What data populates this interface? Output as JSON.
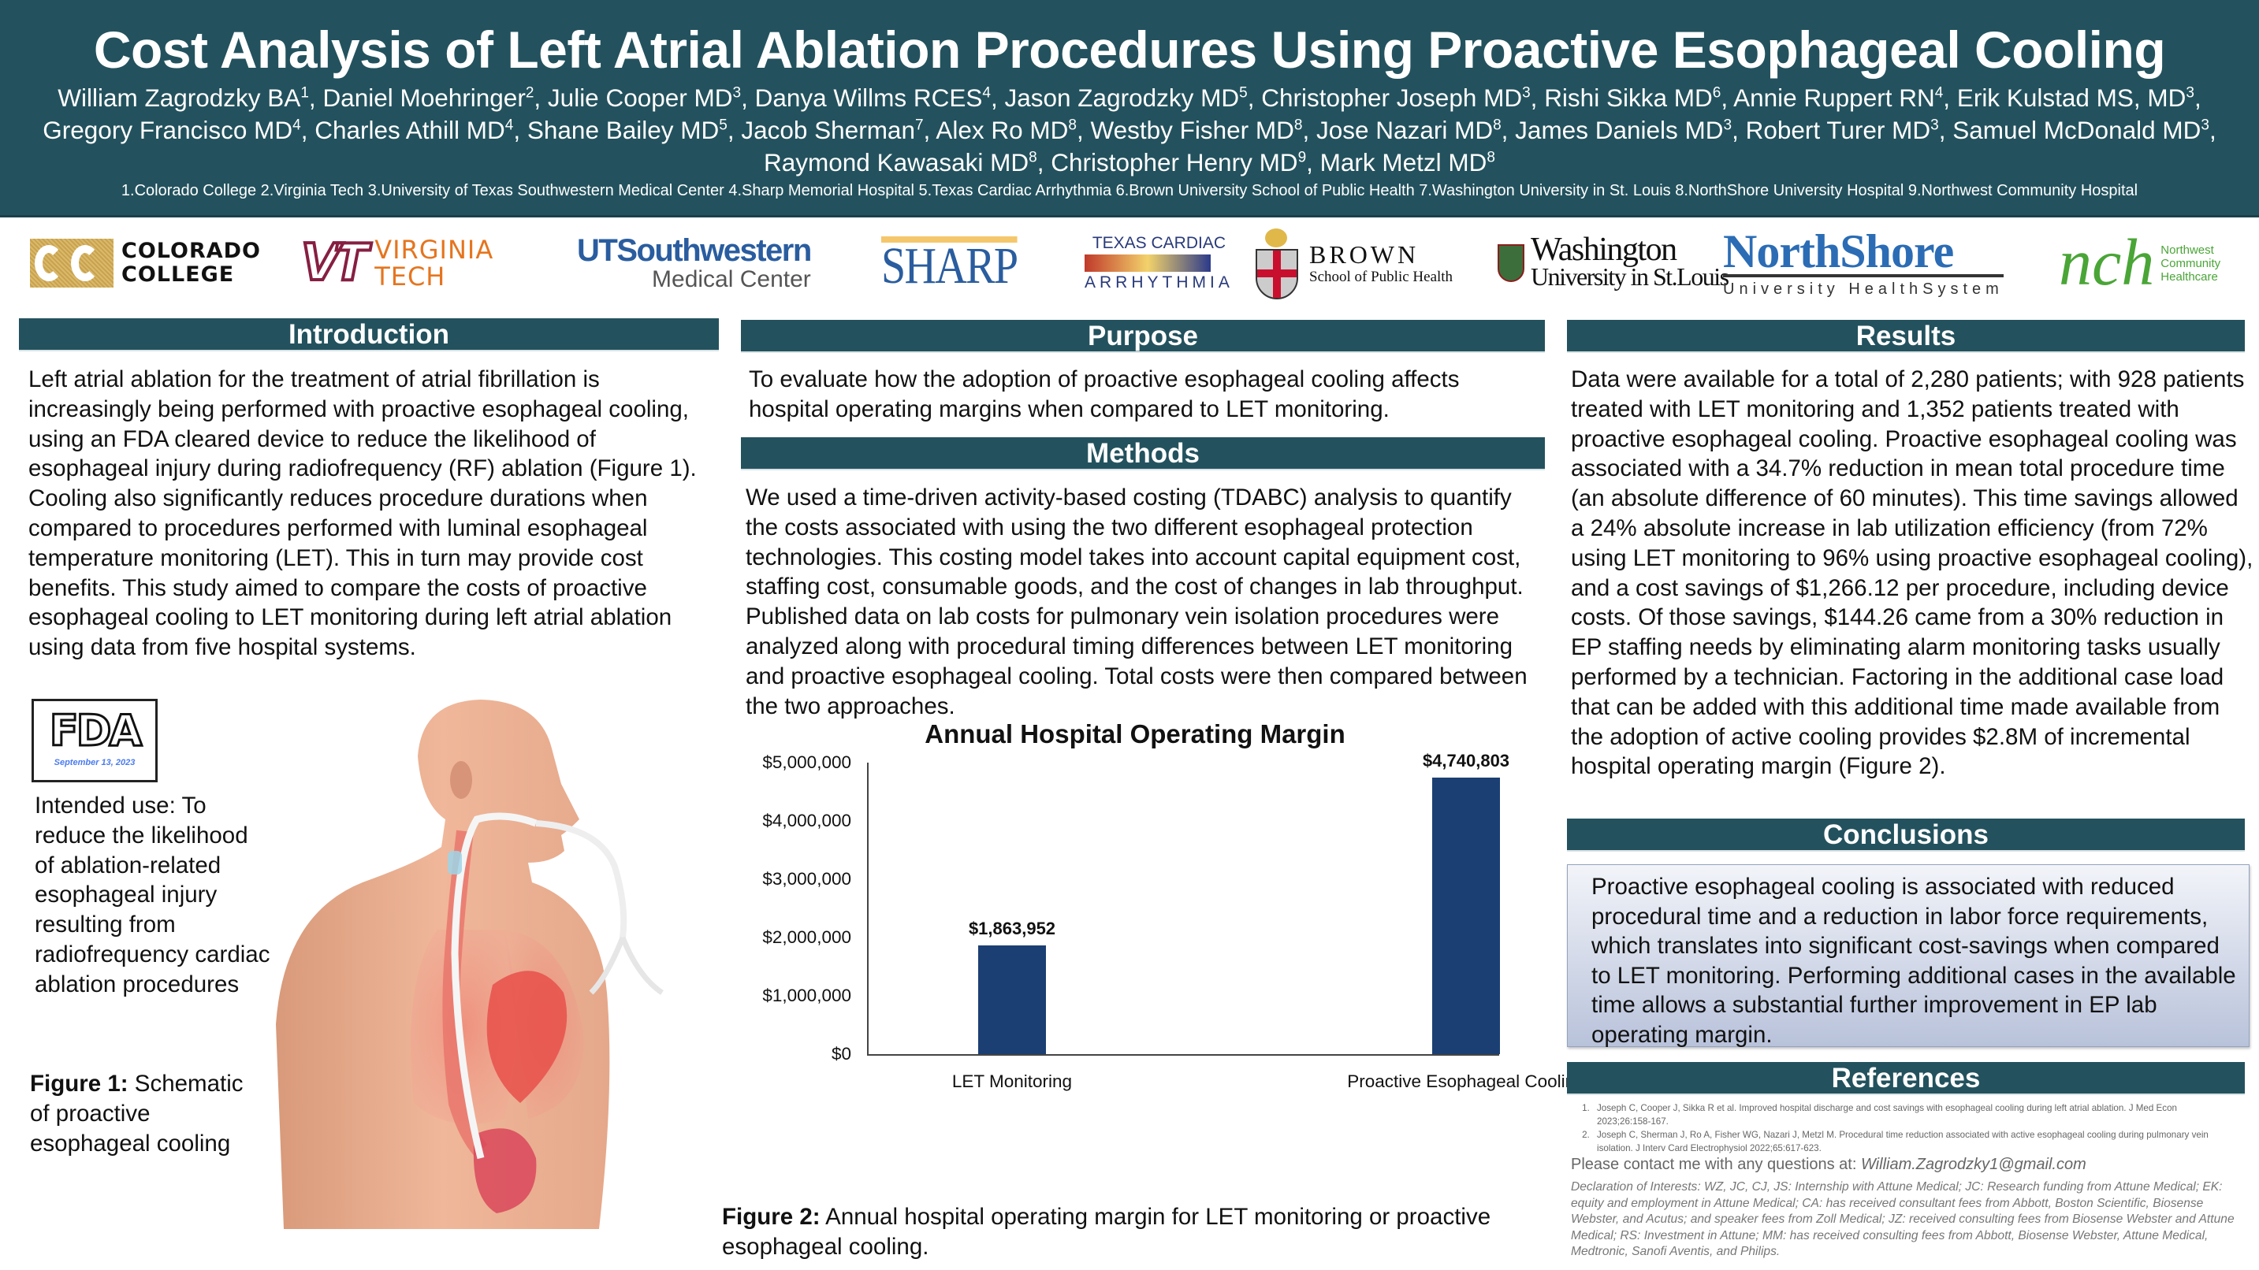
{
  "header": {
    "title": "Cost Analysis of Left Atrial Ablation Procedures Using Proactive Esophageal Cooling",
    "authors": [
      {
        "name": "William Zagrodzky BA",
        "aff": "1"
      },
      {
        "name": "Daniel Moehringer",
        "aff": "2"
      },
      {
        "name": "Julie Cooper MD",
        "aff": "3"
      },
      {
        "name": "Danya Willms RCES",
        "aff": "4"
      },
      {
        "name": "Jason Zagrodzky MD",
        "aff": "5"
      },
      {
        "name": "Christopher Joseph MD",
        "aff": "3"
      },
      {
        "name": "Rishi Sikka MD",
        "aff": "6"
      },
      {
        "name": "Annie Ruppert RN",
        "aff": "4"
      },
      {
        "name": "Erik Kulstad MS, MD",
        "aff": "3"
      },
      {
        "name": "Gregory Francisco MD",
        "aff": "4"
      },
      {
        "name": "Charles Athill MD",
        "aff": "4"
      },
      {
        "name": "Shane Bailey MD",
        "aff": "5"
      },
      {
        "name": "Jacob Sherman",
        "aff": "7"
      },
      {
        "name": "Alex Ro MD",
        "aff": "8"
      },
      {
        "name": "Westby Fisher MD",
        "aff": "8"
      },
      {
        "name": "Jose Nazari MD",
        "aff": "8"
      },
      {
        "name": "James Daniels MD",
        "aff": "3"
      },
      {
        "name": "Robert Turer MD",
        "aff": "3"
      },
      {
        "name": "Samuel McDonald MD",
        "aff": "3"
      },
      {
        "name": "Raymond Kawasaki MD",
        "aff": "8"
      },
      {
        "name": "Christopher Henry MD",
        "aff": "9"
      },
      {
        "name": "Mark Metzl MD",
        "aff": "8"
      }
    ],
    "affiliations": "1.Colorado College  2.Virginia Tech  3.University of Texas Southwestern Medical Center  4.Sharp Memorial Hospital  5.Texas Cardiac Arrhythmia   6.Brown University School of Public Health  7.Washington University in St. Louis  8.NorthShore University Hospital  9.Northwest Community Hospital"
  },
  "logos": {
    "colorado": {
      "line1": "COLORADO",
      "line2": "COLLEGE"
    },
    "vt": {
      "mark": "VT",
      "line1": "VIRGINIA",
      "line2": "TECH"
    },
    "ut": {
      "line1": "UTSouthwestern",
      "line2": "Medical Center"
    },
    "sharp": {
      "text": "SHARP"
    },
    "tca": {
      "line1": "TEXAS CARDIAC",
      "line2": "ARRHYTHMIA"
    },
    "brown": {
      "line1": "BROWN",
      "line2": "School of Public Health"
    },
    "washu": {
      "line1": "Washington",
      "line2": "University in St.Louis"
    },
    "northshore": {
      "line1": "NorthShore",
      "line2": "University HealthSystem"
    },
    "nch": {
      "mark": "nch",
      "line1": "Northwest",
      "line2": "Community",
      "line3": "Healthcare"
    }
  },
  "sections": {
    "introduction": {
      "title": "Introduction",
      "body": "Left atrial ablation for the treatment of atrial fibrillation is increasingly being performed with proactive esophageal cooling, using an FDA cleared device to reduce the likelihood of esophageal injury during radiofrequency (RF) ablation (Figure 1). Cooling also significantly reduces procedure durations when compared to procedures performed with luminal esophageal temperature monitoring (LET). This in turn may provide cost benefits. This study aimed to compare the costs of proactive esophageal cooling to LET monitoring during left atrial ablation using data from five hospital systems."
    },
    "fda": {
      "word": "FDA",
      "date": "September 13, 2023"
    },
    "intended_use": "Intended use: To reduce the likelihood of ablation-related esophageal injury resulting from radiofrequency cardiac ablation procedures",
    "figure1": {
      "label": "Figure 1:",
      "text": " Schematic of proactive esophageal cooling"
    },
    "purpose": {
      "title": "Purpose",
      "body": "To evaluate how the adoption of proactive esophageal cooling affects hospital operating margins when compared to LET monitoring."
    },
    "methods": {
      "title": "Methods",
      "body": "We used a time-driven activity-based costing (TDABC) analysis to quantify the costs associated with using the two different esophageal protection technologies. This costing model takes into account capital equipment cost, staffing cost, consumable goods, and the cost of changes in lab throughput. Published data on lab costs for pulmonary vein isolation procedures were analyzed along with  procedural timing differences between LET monitoring and proactive esophageal cooling. Total costs were then compared between the two approaches."
    },
    "figure2": {
      "label": "Figure 2:",
      "text": " Annual hospital operating margin for LET monitoring or proactive esophageal cooling."
    },
    "results": {
      "title": "Results",
      "body": "Data were available for a total of 2,280 patients; with 928 patients treated with LET monitoring and 1,352 patients treated with proactive esophageal cooling. Proactive esophageal cooling was associated with a 34.7% reduction in mean total procedure time (an absolute difference of 60 minutes). This time savings allowed a 24% absolute increase in lab utilization efficiency (from 72% using LET monitoring to 96% using proactive esophageal cooling), and a cost savings of $1,266.12 per procedure, including device costs. Of those savings, $144.26 came from a 30% reduction in EP staffing needs by eliminating alarm monitoring tasks usually performed by a technician. Factoring in the additional case load that can be added with this additional time made available from the adoption of active cooling provides $2.8M of incremental hospital operating margin (Figure 2)."
    },
    "conclusions": {
      "title": "Conclusions",
      "body": "Proactive esophageal cooling is associated with reduced procedural time and a reduction in labor force requirements, which translates into significant cost-savings when compared to LET monitoring. Performing additional cases in the available time allows a substantial further improvement in EP lab operating margin."
    },
    "references": {
      "title": "References",
      "items": [
        "Joseph C, Cooper J, Sikka R et al. Improved hospital discharge and cost savings with esophageal cooling during left atrial ablation. J Med Econ 2023;26:158-167.",
        "Joseph C, Sherman J, Ro A, Fisher WG, Nazari J, Metzl M. Procedural time reduction associated with active esophageal cooling during pulmonary vein isolation. J Interv Card Electrophysiol 2022;65:617-623."
      ],
      "contact_prefix": "Please contact me with any questions at: ",
      "contact_email": "William.Zagrodzky1@gmail.com",
      "declaration": "Declaration of Interests: WZ, JC, CJ, JS: Internship with Attune Medical; JC: Research funding from Attune Medical; EK: equity and employment in Attune Medical; CA: has received consultant fees from Abbott, Boston Scientific, Biosense Webster, and Acutus; and speaker fees from Zoll Medical; JZ: received consulting fees from Biosense Webster and Attune Medical; RS: Investment in Attune; MM: has received consulting fees from Abbott, Biosense Webster, Attune Medical, Medtronic, Sanofi Aventis, and Philips."
    }
  },
  "colors": {
    "header_bg": "#23525e",
    "bar": "#1b3f72",
    "section_bar": "#23525e"
  },
  "chart_data": {
    "type": "bar",
    "title": "Annual Hospital Operating Margin",
    "categories": [
      "LET Monitoring",
      "Proactive Esophageal Cooling"
    ],
    "values": [
      1863952,
      4740803
    ],
    "value_labels": [
      "$1,863,952",
      "$4,740,803"
    ],
    "xlabel": "",
    "ylabel": "",
    "ylim": [
      0,
      5000000
    ],
    "yticks": [
      "$0",
      "$1,000,000",
      "$2,000,000",
      "$3,000,000",
      "$4,000,000",
      "$5,000,000"
    ],
    "grid": false,
    "legend": "none"
  }
}
